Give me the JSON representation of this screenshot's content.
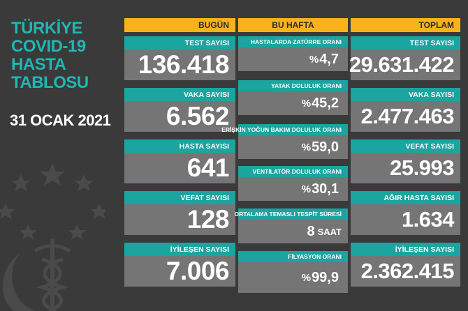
{
  "title_lines": [
    "TÜRKİYE",
    "COVID-19",
    "HASTA",
    "TABLOSU"
  ],
  "date": "31 OCAK 2021",
  "today": {
    "header": "BUGÜN",
    "items": [
      {
        "label": "TEST SAYISI",
        "value": "136.418"
      },
      {
        "label": "VAKA SAYISI",
        "value": "6.562"
      },
      {
        "label": "HASTA SAYISI",
        "value": "641"
      },
      {
        "label": "VEFAT SAYISI",
        "value": "128"
      },
      {
        "label": "İYİLEŞEN SAYISI",
        "value": "7.006"
      }
    ]
  },
  "week": {
    "header": "BU HAFTA",
    "items": [
      {
        "label": "HASTALARDA ZATÜRRE ORANI",
        "prefix": "%",
        "value": "4,7",
        "unit": ""
      },
      {
        "label": "YATAK DOLULUK ORANI",
        "prefix": "%",
        "value": "45,2",
        "unit": ""
      },
      {
        "label": "ERİŞKİN YOĞUN BAKIM DOLULUK ORANI",
        "prefix": "%",
        "value": "59,0",
        "unit": ""
      },
      {
        "label": "VENTİLATÖR DOLULUK ORANI",
        "prefix": "%",
        "value": "30,1",
        "unit": ""
      },
      {
        "label": "ORTALAMA TEMASLI TESPİT SÜRESİ",
        "prefix": "",
        "value": "8",
        "unit": "SAAT"
      },
      {
        "label": "FİLYASYON ORANI",
        "prefix": "%",
        "value": "99,9",
        "unit": ""
      }
    ]
  },
  "total": {
    "header": "TOPLAM",
    "items": [
      {
        "label": "TEST SAYISI",
        "value": "29.631.422"
      },
      {
        "label": "VAKA SAYISI",
        "value": "2.477.463"
      },
      {
        "label": "VEFAT SAYISI",
        "value": "25.993"
      },
      {
        "label": "AĞIR HASTA SAYISI",
        "value": "1.634"
      },
      {
        "label": "İYİLEŞEN SAYISI",
        "value": "2.362.415"
      }
    ]
  },
  "colors": {
    "background": "#3a3a3a",
    "accent_teal": "#1ba4a0",
    "header_yellow": "#f8b21c",
    "value_gray": "#757575"
  },
  "emblem_icon": "ministry-emblem-icon"
}
